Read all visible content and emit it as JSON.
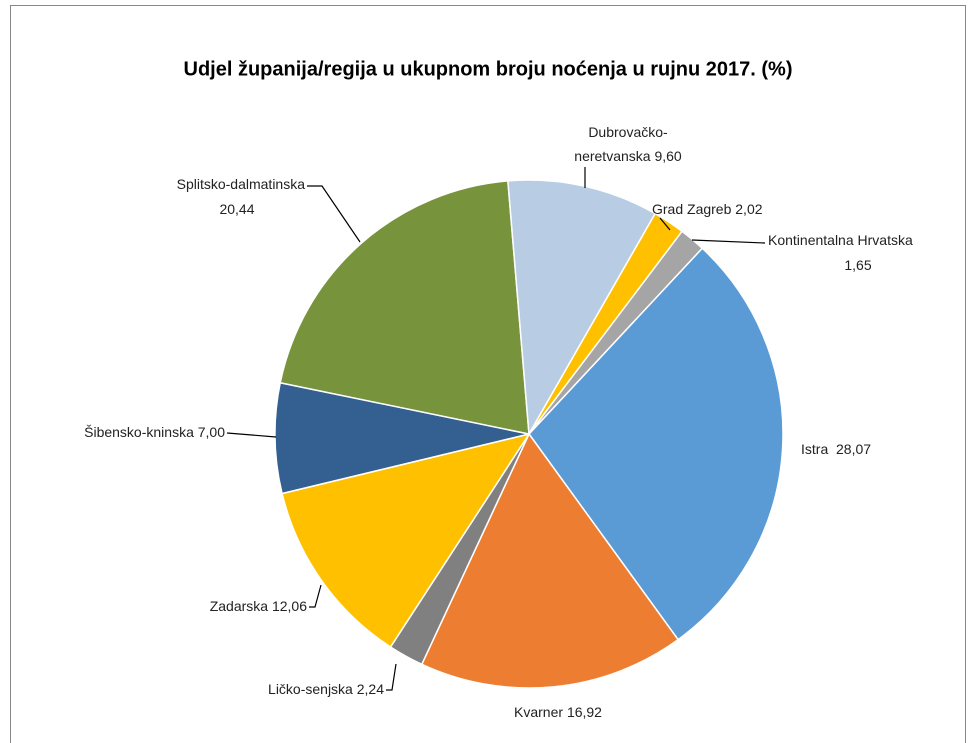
{
  "chart_data": {
    "type": "pie",
    "title": "Udjel županija/regija u ukupnom broju noćenja u rujnu 2017. (%)",
    "categories": [
      "Istra",
      "Kvarner",
      "Ličko-senjska",
      "Zadarska",
      "Šibensko-kninska",
      "Splitsko-dalmatinska",
      "Dubrovačko-neretvanska",
      "Grad Zagreb",
      "Kontinentalna Hrvatska"
    ],
    "values": [
      28.07,
      16.92,
      2.24,
      12.06,
      7.0,
      20.44,
      9.6,
      2.02,
      1.65
    ],
    "value_labels": [
      "28,07",
      "16,92",
      "2,24",
      "12,06",
      "7,00",
      "20,44",
      "9,60",
      "2,02",
      "1,65"
    ],
    "colors": [
      "#5b9bd5",
      "#ed7d31",
      "#808080",
      "#ffc000",
      "#335f91",
      "#77933c",
      "#b8cce4",
      "#ffc000",
      "#a5a5a5"
    ]
  }
}
